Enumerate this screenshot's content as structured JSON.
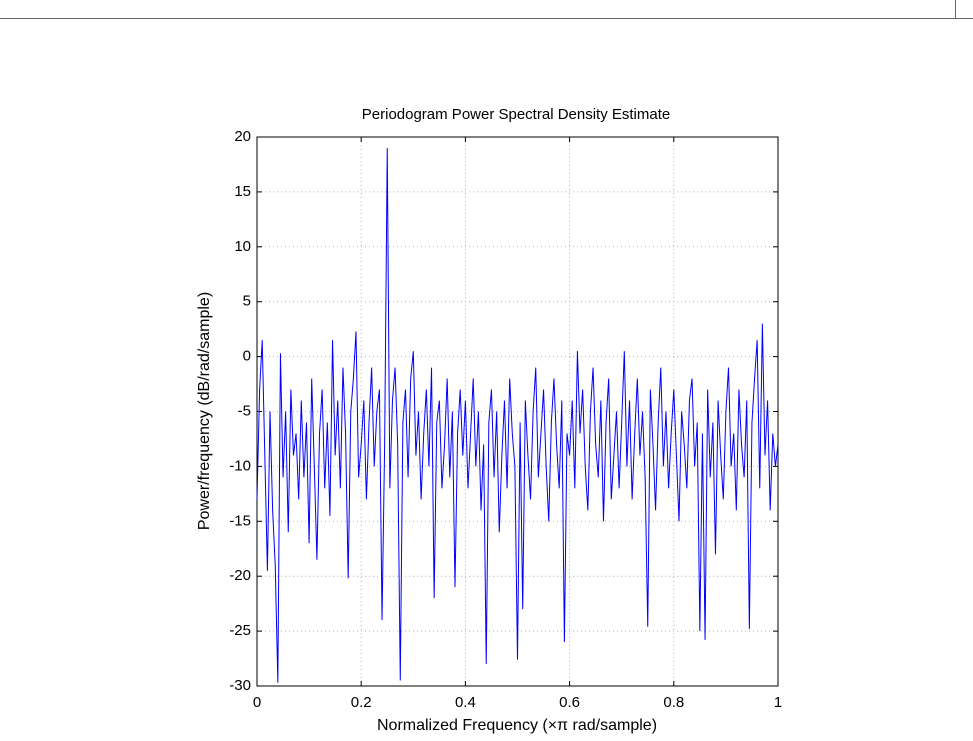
{
  "chart_data": {
    "type": "line",
    "title": "Periodogram Power Spectral Density Estimate",
    "xlabel": "Normalized Frequency  (×π rad/sample)",
    "ylabel": "Power/frequency (dB/rad/sample)",
    "xlim": [
      0,
      1
    ],
    "xticks": [
      0,
      0.2,
      0.4,
      0.6,
      0.8,
      1
    ],
    "ylim": [
      -30,
      20
    ],
    "yticks": [
      -30,
      -25,
      -20,
      -15,
      -10,
      -5,
      0,
      5,
      10,
      15,
      20
    ],
    "grid": true,
    "x": [
      0,
      0.005,
      0.01,
      0.015,
      0.02,
      0.025,
      0.03,
      0.035,
      0.04,
      0.045,
      0.05,
      0.055,
      0.06,
      0.065,
      0.07,
      0.075,
      0.08,
      0.085,
      0.09,
      0.095,
      0.1,
      0.105,
      0.11,
      0.115,
      0.12,
      0.125,
      0.13,
      0.135,
      0.14,
      0.145,
      0.15,
      0.155,
      0.16,
      0.165,
      0.17,
      0.175,
      0.18,
      0.185,
      0.19,
      0.195,
      0.2,
      0.205,
      0.21,
      0.215,
      0.22,
      0.225,
      0.23,
      0.235,
      0.24,
      0.245,
      0.25,
      0.255,
      0.26,
      0.265,
      0.27,
      0.275,
      0.28,
      0.285,
      0.29,
      0.295,
      0.3,
      0.305,
      0.31,
      0.315,
      0.32,
      0.325,
      0.33,
      0.335,
      0.34,
      0.345,
      0.35,
      0.355,
      0.36,
      0.365,
      0.37,
      0.375,
      0.38,
      0.385,
      0.39,
      0.395,
      0.4,
      0.405,
      0.41,
      0.415,
      0.42,
      0.425,
      0.43,
      0.435,
      0.44,
      0.445,
      0.45,
      0.455,
      0.46,
      0.465,
      0.47,
      0.475,
      0.48,
      0.485,
      0.49,
      0.495,
      0.5,
      0.505,
      0.51,
      0.515,
      0.52,
      0.525,
      0.53,
      0.535,
      0.54,
      0.545,
      0.55,
      0.555,
      0.56,
      0.565,
      0.57,
      0.575,
      0.58,
      0.585,
      0.59,
      0.595,
      0.6,
      0.605,
      0.61,
      0.615,
      0.62,
      0.625,
      0.63,
      0.635,
      0.64,
      0.645,
      0.65,
      0.655,
      0.66,
      0.665,
      0.67,
      0.675,
      0.68,
      0.685,
      0.69,
      0.695,
      0.7,
      0.705,
      0.71,
      0.715,
      0.72,
      0.725,
      0.73,
      0.735,
      0.74,
      0.745,
      0.75,
      0.755,
      0.76,
      0.765,
      0.77,
      0.775,
      0.78,
      0.785,
      0.79,
      0.795,
      0.8,
      0.805,
      0.81,
      0.815,
      0.82,
      0.825,
      0.83,
      0.835,
      0.84,
      0.845,
      0.85,
      0.855,
      0.86,
      0.865,
      0.87,
      0.875,
      0.88,
      0.885,
      0.89,
      0.895,
      0.9,
      0.905,
      0.91,
      0.915,
      0.92,
      0.925,
      0.93,
      0.935,
      0.94,
      0.945,
      0.95,
      0.955,
      0.96,
      0.965,
      0.97,
      0.975,
      0.98,
      0.985,
      0.99,
      0.995,
      1
    ],
    "series": [
      {
        "color": "#0000ff",
        "values": [
          -13,
          -3,
          1.5,
          -9,
          -19.5,
          -5,
          -14,
          -19,
          -29.7,
          0.3,
          -11,
          -5,
          -16,
          -3,
          -9,
          -7,
          -13,
          -4,
          -11,
          -6,
          -17,
          -2,
          -10,
          -18.5,
          -7,
          -3,
          -12,
          -6,
          -14.5,
          1.5,
          -9,
          -4,
          -12,
          -1,
          -7,
          -20.2,
          -5,
          -2,
          2.3,
          -11,
          -8,
          -4,
          -13,
          -6,
          -1,
          -10,
          -5,
          -3,
          -24,
          -8,
          19,
          -12,
          -4,
          -1,
          -8,
          -29.5,
          -6,
          -3,
          -11,
          -2,
          0.5,
          -9,
          -5,
          -13,
          -7,
          -3,
          -10,
          -1,
          -22,
          -6,
          -4,
          -12,
          -8,
          -2,
          -11,
          -5,
          -21,
          -7,
          -3,
          -9,
          -4,
          -12,
          -7,
          -2,
          -10,
          -5,
          -14,
          -8,
          -28,
          -6,
          -3,
          -11,
          -5,
          -16,
          -9,
          -4,
          -12,
          -2,
          -7,
          -10,
          -27.6,
          -6,
          -23,
          -4,
          -9,
          -13,
          -5,
          -1,
          -11,
          -7,
          -3,
          -10,
          -15,
          -6,
          -2,
          -8,
          -12,
          -4,
          -26,
          -7,
          -9,
          -4,
          -12,
          0.5,
          -7,
          -3,
          -10,
          -14,
          -5,
          -1,
          -8,
          -11,
          -4,
          -15,
          -6,
          -2,
          -13,
          -9,
          -5,
          -12,
          -6,
          0.5,
          -10,
          -4,
          -13,
          -7,
          -2,
          -9,
          -5,
          -11,
          -24.6,
          -3,
          -8,
          -14,
          -6,
          -1,
          -10,
          -5,
          -12,
          -7,
          -3,
          -9,
          -15,
          -5,
          -8,
          -12,
          -4,
          -2,
          -10,
          -6,
          -25,
          -7,
          -25.8,
          -3,
          -11,
          -6,
          -18,
          -4,
          -9,
          -13,
          -5,
          -1,
          -10,
          -7,
          -14,
          -3,
          -8,
          -11,
          -4,
          -24.8,
          -6,
          -2,
          1.5,
          -12,
          3,
          -9,
          -4,
          -14,
          -7,
          -10,
          -8
        ]
      }
    ]
  }
}
